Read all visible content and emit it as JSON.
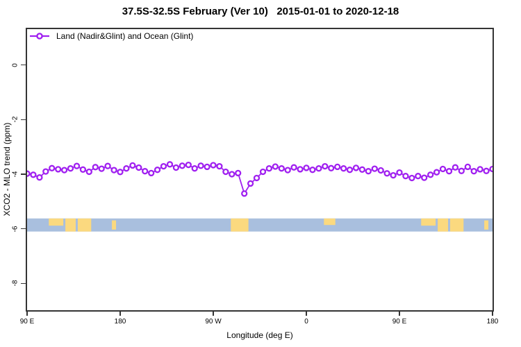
{
  "header": {
    "title": "37.5S-32.5S February (Ver 10)   2015-01-01 to 2020-12-18"
  },
  "legend": {
    "label": "Land (Nadir&Glint) and Ocean (Glint)"
  },
  "colors": {
    "series": "#a020f0",
    "frame": "#343434",
    "ocean": "#a9bfde",
    "land": "#fbd97f",
    "text": "#000000"
  },
  "chart_data": {
    "type": "line",
    "title": "37.5S-32.5S February (Ver 10)   2015-01-01 to 2020-12-18",
    "xlabel": "Longitude (deg E)",
    "ylabel": "XCO2 - MLO trend (ppm)",
    "legend_position": "top-left",
    "grid": false,
    "xlim_deg": [
      0,
      450
    ],
    "ylim": [
      -8.98,
      1.31
    ],
    "x_ticks": [
      {
        "label": "90 E",
        "deg": 0
      },
      {
        "label": "180",
        "deg": 90
      },
      {
        "label": "90 W",
        "deg": 180
      },
      {
        "label": "0",
        "deg": 270
      },
      {
        "label": "90 E",
        "deg": 360
      },
      {
        "label": "180",
        "deg": 450
      }
    ],
    "y_ticks": [
      {
        "label": "0",
        "value": 0
      },
      {
        "label": "-2",
        "value": -2
      },
      {
        "label": "-4",
        "value": -4
      },
      {
        "label": "-6",
        "value": -6
      },
      {
        "label": "-8",
        "value": -8
      }
    ],
    "series": [
      {
        "name": "Land (Nadir&Glint) and Ocean (Glint)",
        "marker": "open-circle",
        "color": "#a020f0",
        "x_deg": [
          0,
          6,
          12,
          18,
          24,
          30,
          36,
          42,
          48,
          54,
          60,
          66,
          72,
          78,
          84,
          90,
          96,
          102,
          108,
          114,
          120,
          126,
          132,
          138,
          144,
          150,
          156,
          162,
          168,
          174,
          180,
          186,
          192,
          198,
          204,
          210,
          216,
          222,
          228,
          234,
          240,
          246,
          252,
          258,
          264,
          270,
          276,
          282,
          288,
          294,
          300,
          306,
          312,
          318,
          324,
          330,
          336,
          342,
          348,
          354,
          360,
          366,
          372,
          378,
          384,
          390,
          396,
          402,
          408,
          414,
          420,
          426,
          432,
          438,
          444,
          450
        ],
        "y_ppm": [
          -3.98,
          -4.02,
          -4.12,
          -3.9,
          -3.78,
          -3.82,
          -3.85,
          -3.79,
          -3.7,
          -3.83,
          -3.91,
          -3.74,
          -3.8,
          -3.7,
          -3.85,
          -3.92,
          -3.79,
          -3.68,
          -3.76,
          -3.89,
          -3.96,
          -3.84,
          -3.71,
          -3.64,
          -3.76,
          -3.69,
          -3.66,
          -3.79,
          -3.69,
          -3.73,
          -3.67,
          -3.71,
          -3.91,
          -4.0,
          -3.96,
          -4.71,
          -4.34,
          -4.14,
          -3.91,
          -3.79,
          -3.72,
          -3.79,
          -3.85,
          -3.75,
          -3.82,
          -3.77,
          -3.84,
          -3.79,
          -3.71,
          -3.78,
          -3.73,
          -3.79,
          -3.84,
          -3.77,
          -3.83,
          -3.89,
          -3.8,
          -3.86,
          -3.97,
          -4.04,
          -3.94,
          -4.07,
          -4.14,
          -4.07,
          -4.13,
          -4.02,
          -3.93,
          -3.81,
          -3.89,
          -3.75,
          -3.88,
          -3.73,
          -3.89,
          -3.82,
          -3.88,
          -3.81
        ]
      }
    ],
    "map_band": {
      "lat_range": "37.5S-32.5S",
      "y_top_ppm": -5.62,
      "y_bottom_ppm": -6.1,
      "ocean_color": "#a9bfde",
      "land_color": "#fbd97f",
      "land_segments": [
        {
          "name": "australia-west",
          "deg": [
            21,
            35
          ],
          "frac": [
            0,
            0.55
          ]
        },
        {
          "name": "australia-central",
          "deg": [
            37,
            47
          ],
          "frac": [
            0,
            1
          ]
        },
        {
          "name": "australia-east",
          "deg": [
            49,
            62
          ],
          "frac": [
            0,
            1
          ]
        },
        {
          "name": "new-zealand",
          "deg": [
            82,
            86
          ],
          "frac": [
            0.15,
            0.85
          ]
        },
        {
          "name": "south-america",
          "deg": [
            197,
            214
          ],
          "frac": [
            0,
            1
          ]
        },
        {
          "name": "south-africa",
          "deg": [
            287,
            298
          ],
          "frac": [
            0,
            0.5
          ]
        },
        {
          "name": "australia-west-2",
          "deg": [
            381,
            395
          ],
          "frac": [
            0,
            0.55
          ]
        },
        {
          "name": "australia-central-2",
          "deg": [
            397,
            407
          ],
          "frac": [
            0,
            1
          ]
        },
        {
          "name": "australia-east-2",
          "deg": [
            409,
            422
          ],
          "frac": [
            0,
            1
          ]
        },
        {
          "name": "new-zealand-2",
          "deg": [
            442,
            446
          ],
          "frac": [
            0.15,
            0.85
          ]
        }
      ]
    }
  }
}
